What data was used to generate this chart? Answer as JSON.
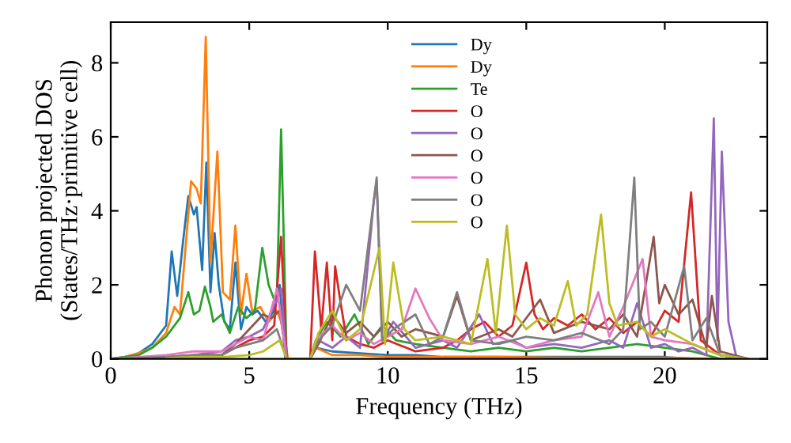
{
  "chart_data": {
    "type": "line",
    "xlabel": "Frequency (THz)",
    "ylabel": "Phonon projected DOS\n(States/THz·primitive cell)",
    "xlim": [
      0,
      23.7
    ],
    "ylim": [
      0,
      9.1
    ],
    "xticks": [
      0,
      5,
      10,
      15,
      20
    ],
    "yticks": [
      0,
      2,
      4,
      6,
      8
    ],
    "grid": false,
    "legend": "top",
    "marker": "none",
    "line_style": "solid",
    "series": [
      {
        "name": "Dy",
        "color": "#1f77b4",
        "x": [
          0,
          0.5,
          1,
          1.5,
          2,
          2.2,
          2.4,
          2.6,
          2.8,
          3.0,
          3.1,
          3.3,
          3.45,
          3.6,
          3.75,
          3.9,
          4.1,
          4.3,
          4.5,
          4.7,
          4.9,
          5.1,
          5.3,
          5.6,
          5.9,
          6.1,
          6.3,
          6.5,
          7.2,
          7.4,
          8,
          9,
          10,
          11,
          12,
          13,
          14,
          15,
          16,
          17,
          18,
          19,
          20,
          21
        ],
        "values": [
          0,
          0.05,
          0.15,
          0.4,
          0.9,
          2.9,
          1.7,
          3.1,
          4.4,
          3.9,
          4.1,
          2.4,
          5.3,
          1.8,
          3.4,
          2.0,
          1.0,
          0.8,
          2.6,
          0.8,
          1.4,
          1.2,
          1.3,
          1.0,
          1.3,
          2.0,
          0,
          0,
          0,
          0.3,
          0.2,
          0.15,
          0.1,
          0.1,
          0.05,
          0.05,
          0.05,
          0.05,
          0.05,
          0.05,
          0.05,
          0.05,
          0.05,
          0
        ]
      },
      {
        "name": "Dy",
        "color": "#ff7f0e",
        "x": [
          0,
          0.5,
          1,
          1.5,
          2,
          2.3,
          2.5,
          2.7,
          2.9,
          3.1,
          3.25,
          3.43,
          3.6,
          3.85,
          4.05,
          4.3,
          4.5,
          4.7,
          4.9,
          5.1,
          5.4,
          5.7,
          6.0,
          6.2,
          6.4,
          7.2,
          7.4,
          8,
          9,
          10,
          12,
          14,
          16,
          18,
          20,
          22,
          23
        ],
        "values": [
          0,
          0.05,
          0.15,
          0.3,
          0.7,
          1.4,
          1.2,
          3.0,
          4.8,
          4.6,
          4.2,
          8.7,
          2.6,
          5.6,
          1.8,
          1.6,
          3.6,
          1.2,
          2.3,
          1.3,
          1.4,
          1.0,
          1.3,
          0.9,
          0,
          0,
          0.3,
          0.1,
          0.1,
          0.05,
          0.05,
          0.05,
          0.03,
          0.03,
          0.03,
          0,
          0
        ]
      },
      {
        "name": "Te",
        "color": "#2ca02c",
        "x": [
          0,
          0.5,
          1,
          1.5,
          2,
          2.5,
          2.8,
          3.0,
          3.2,
          3.4,
          3.6,
          3.7,
          4.0,
          4.3,
          4.6,
          4.9,
          5.2,
          5.47,
          5.7,
          5.9,
          6.0,
          6.15,
          6.35,
          7.2,
          7.4,
          7.8,
          8.3,
          8.8,
          9.3,
          9.8,
          10.3,
          11,
          12,
          13,
          14,
          15,
          16,
          17,
          18,
          19,
          20,
          21,
          22,
          23
        ],
        "values": [
          0,
          0.05,
          0.1,
          0.3,
          0.6,
          1.1,
          1.8,
          1.2,
          1.3,
          1.95,
          1.4,
          1.0,
          1.2,
          0.7,
          1.4,
          1.1,
          1.3,
          3.0,
          2.0,
          1.6,
          1.8,
          6.2,
          0,
          0,
          0.5,
          1.0,
          0.6,
          1.2,
          0.4,
          0.9,
          0.5,
          0.4,
          0.3,
          0.2,
          0.3,
          0.2,
          0.3,
          0.2,
          0.3,
          0.4,
          0.3,
          0.2,
          0,
          0
        ]
      },
      {
        "name": "O",
        "color": "#d62728",
        "x": [
          4,
          4.5,
          5.0,
          5.5,
          5.9,
          6.15,
          6.35,
          7.2,
          7.37,
          7.6,
          7.8,
          8.0,
          8.1,
          8.3,
          8.5,
          9,
          9.5,
          10,
          11,
          12,
          12.5,
          13,
          13.5,
          14,
          14.5,
          15.0,
          15.3,
          15.6,
          16,
          16.5,
          17,
          17.5,
          18,
          18.5,
          19,
          19.5,
          20,
          20.5,
          20.95,
          21.3,
          22,
          23
        ],
        "values": [
          0.1,
          0.3,
          0.5,
          0.6,
          0.9,
          3.3,
          0,
          0,
          2.9,
          0.8,
          2.6,
          0.5,
          2.5,
          1.5,
          0.6,
          0.4,
          0.3,
          0.5,
          0.2,
          0.3,
          0.5,
          0.8,
          1.0,
          0.6,
          0.9,
          2.6,
          1.2,
          0.8,
          1.1,
          0.9,
          1.2,
          0.8,
          1.1,
          0.7,
          1.0,
          0.6,
          1.3,
          1.0,
          4.5,
          0.5,
          0.1,
          0
        ]
      },
      {
        "name": "O",
        "color": "#9467bd",
        "x": [
          0,
          2,
          3,
          4,
          4.5,
          5.0,
          5.5,
          6.0,
          6.15,
          6.35,
          7.2,
          7.5,
          8,
          8.5,
          9,
          9.5,
          9.6,
          9.8,
          10.2,
          11,
          12,
          12.5,
          13.3,
          13.8,
          14.5,
          15,
          16,
          17,
          18,
          18.5,
          19,
          19.5,
          20,
          20.5,
          21,
          21.5,
          21.77,
          21.9,
          22.06,
          22.3,
          22.6,
          23
        ],
        "values": [
          0,
          0.05,
          0.1,
          0.2,
          0.5,
          0.6,
          0.8,
          1.6,
          1.9,
          0,
          0,
          0.5,
          0.3,
          0.6,
          0.3,
          4.3,
          4.8,
          0.5,
          1.0,
          0.3,
          0.5,
          0.3,
          1.2,
          0.4,
          0.5,
          0.3,
          0.4,
          0.3,
          0.5,
          0.3,
          1.5,
          0.3,
          0.4,
          0.2,
          0.3,
          0.1,
          6.5,
          0.5,
          5.6,
          1.0,
          0,
          0
        ]
      },
      {
        "name": "O",
        "color": "#8c564b",
        "x": [
          0,
          2,
          3,
          4,
          4.5,
          5.0,
          5.5,
          5.8,
          6.1,
          6.35,
          7.2,
          7.5,
          8,
          8.5,
          9,
          9.5,
          10,
          10.5,
          11,
          12,
          12.5,
          13,
          14,
          14.5,
          15.5,
          16,
          17,
          18,
          18.5,
          19,
          19.6,
          19.8,
          20,
          20.5,
          21,
          21.5,
          21.7,
          22,
          23
        ],
        "values": [
          0,
          0.05,
          0.1,
          0.1,
          0.4,
          0.8,
          1.2,
          1.1,
          1.3,
          0,
          0,
          0.4,
          1.2,
          0.7,
          1.0,
          0.6,
          1.0,
          0.6,
          0.8,
          0.6,
          1.7,
          0.5,
          0.8,
          0.6,
          1.6,
          0.7,
          1.0,
          0.8,
          1.2,
          0.6,
          3.3,
          1.5,
          2.0,
          1.2,
          1.6,
          0.3,
          1.7,
          0.2,
          0
        ]
      },
      {
        "name": "O",
        "color": "#e377c2",
        "x": [
          0,
          2,
          3,
          4,
          4.5,
          5.0,
          5.5,
          6.0,
          6.2,
          6.35,
          7.2,
          7.5,
          8,
          8.5,
          9,
          9.5,
          10,
          10.5,
          11,
          11.5,
          12,
          13,
          14,
          15,
          16,
          17,
          17.6,
          18,
          18.5,
          19.2,
          19.5,
          20,
          21,
          22,
          23
        ],
        "values": [
          0,
          0.1,
          0.2,
          0.2,
          0.4,
          0.6,
          0.5,
          1.9,
          0.8,
          0,
          0,
          0.6,
          0.9,
          0.5,
          0.7,
          0.4,
          0.6,
          0.8,
          1.9,
          1.1,
          0.5,
          0.4,
          0.6,
          0.3,
          0.5,
          0.6,
          1.8,
          0.6,
          1.4,
          2.7,
          0.6,
          0.5,
          0.4,
          0.1,
          0
        ]
      },
      {
        "name": "O",
        "color": "#7f7f7f",
        "x": [
          0,
          2,
          3,
          4,
          4.5,
          5.0,
          5.5,
          6.0,
          6.35,
          7.2,
          7.5,
          8,
          8.5,
          9,
          9.6,
          9.8,
          10.2,
          11,
          11.5,
          12,
          12.5,
          13,
          14,
          15,
          16,
          17,
          18,
          18.5,
          18.9,
          19.1,
          19.5,
          20,
          20.7,
          21,
          21.5,
          22,
          23
        ],
        "values": [
          0,
          0.05,
          0.1,
          0.1,
          0.3,
          0.4,
          0.5,
          0.8,
          0,
          0,
          0.5,
          0.9,
          2.0,
          1.3,
          4.9,
          0.5,
          0.8,
          1.2,
          0.4,
          0.6,
          1.8,
          0.5,
          0.4,
          0.6,
          0.5,
          0.7,
          0.4,
          0.8,
          4.9,
          0.8,
          1.0,
          0.6,
          2.5,
          0.5,
          1.1,
          0.1,
          0
        ]
      },
      {
        "name": "O",
        "color": "#bcbd22",
        "x": [
          2,
          3,
          4,
          5,
          5.5,
          6.1,
          6.35,
          7.2,
          7.5,
          8,
          8.5,
          9,
          9.7,
          9.9,
          10.2,
          10.6,
          11,
          12,
          13,
          13.6,
          13.9,
          14.3,
          14.6,
          15,
          15.5,
          16,
          16.5,
          16.8,
          17.2,
          17.7,
          18,
          18.3,
          19,
          19.5,
          20,
          21,
          22,
          23
        ],
        "values": [
          0.02,
          0.05,
          0.05,
          0.1,
          0.2,
          0.5,
          0,
          0,
          0.7,
          1.3,
          0.5,
          0.8,
          3.0,
          0.4,
          2.6,
          0.8,
          0.5,
          0.6,
          0.4,
          2.7,
          0.7,
          3.6,
          1.2,
          0.8,
          1.1,
          0.9,
          2.1,
          0.9,
          1.2,
          3.9,
          1.5,
          0.9,
          1.0,
          0.6,
          0.8,
          0.4,
          0.1,
          0
        ]
      }
    ]
  }
}
